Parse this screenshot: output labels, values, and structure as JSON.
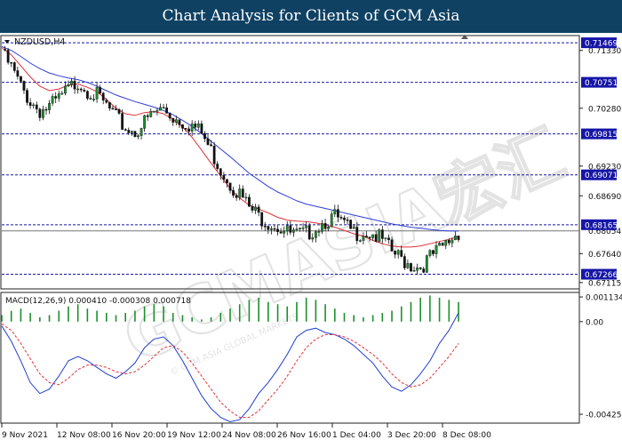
{
  "banner": {
    "title": "Chart Analysis for Clients of GCM Asia"
  },
  "watermark": {
    "text": "GCMASIA宏汇",
    "subtext": "© GCM ASIA GLOBAL MARKETS"
  },
  "colors": {
    "banner_bg": "#0f4163",
    "candle_up": "#1d8f2b",
    "candle_down": "#111111",
    "ma_fast": "#e0303a",
    "ma_slow": "#2f3fd6",
    "level_line": "#1515a8",
    "level_tag_bg": "#1515a8",
    "macd_hist": "#1d8f2b",
    "macd_line": "#1f3fd0",
    "signal_line": "#e0303a"
  },
  "chart_data": [
    {
      "type": "candlestick",
      "title": "NZDUSD,H4",
      "ylim": [
        0.67,
        0.716
      ],
      "price_scale_labels": [
        "0.71330",
        "0.70280",
        "0.69230",
        "0.68690",
        "0.67640",
        "0.67115"
      ],
      "levels": [
        {
          "label": "0.71469",
          "value": 0.71469
        },
        {
          "label": "0.70751",
          "value": 0.70751
        },
        {
          "label": "0.69815",
          "value": 0.69815
        },
        {
          "label": "0.69071",
          "value": 0.69071
        },
        {
          "label": "0.68165",
          "value": 0.68165
        },
        {
          "label": "0.67266",
          "value": 0.67266
        }
      ],
      "current_price": {
        "label": "0.68054",
        "value": 0.68054
      },
      "close_path": [
        0.7135,
        0.711,
        0.7075,
        0.7048,
        0.7032,
        0.7038,
        0.7052,
        0.707,
        0.7085,
        0.707,
        0.7058,
        0.704,
        0.7018,
        0.7,
        0.6993,
        0.701,
        0.7028,
        0.7035,
        0.702,
        0.7012,
        0.7005,
        0.699,
        0.6958,
        0.6925,
        0.69,
        0.688,
        0.6855,
        0.684,
        0.683,
        0.6822,
        0.681,
        0.6805,
        0.6808,
        0.682,
        0.6832,
        0.6838,
        0.6822,
        0.681,
        0.6812,
        0.6808,
        0.6795,
        0.6775,
        0.6762,
        0.6752,
        0.6748,
        0.6765,
        0.6778,
        0.6795,
        0.6812
      ],
      "ma_fast": [
        0.7138,
        0.7125,
        0.7105,
        0.7085,
        0.7068,
        0.706,
        0.7063,
        0.707,
        0.7072,
        0.7066,
        0.7058,
        0.7044,
        0.7028,
        0.7018,
        0.7015,
        0.702,
        0.7022,
        0.7018,
        0.7008,
        0.6994,
        0.6975,
        0.6952,
        0.6928,
        0.6905,
        0.6882,
        0.6865,
        0.6852,
        0.6845,
        0.6838,
        0.683,
        0.6825,
        0.6823,
        0.6822,
        0.682,
        0.6816,
        0.6812,
        0.6806,
        0.68,
        0.6796,
        0.6788,
        0.6782,
        0.6778,
        0.6776,
        0.6776,
        0.6778,
        0.6782,
        0.6786,
        0.679,
        0.6795
      ],
      "ma_slow": [
        0.714,
        0.7133,
        0.7122,
        0.711,
        0.71,
        0.7092,
        0.7087,
        0.7083,
        0.708,
        0.7075,
        0.7068,
        0.706,
        0.7052,
        0.7046,
        0.704,
        0.7035,
        0.703,
        0.7024,
        0.7016,
        0.7006,
        0.6995,
        0.6982,
        0.6968,
        0.6954,
        0.694,
        0.6925,
        0.691,
        0.6898,
        0.6886,
        0.6876,
        0.6868,
        0.686,
        0.6854,
        0.685,
        0.6846,
        0.6842,
        0.6838,
        0.6834,
        0.683,
        0.6826,
        0.6822,
        0.6818,
        0.6815,
        0.6812,
        0.681,
        0.6808,
        0.6806,
        0.6805,
        0.6805
      ]
    },
    {
      "type": "bar",
      "title": "MACD(12,26,9) 0.000410 -0.000308 0.000718",
      "ylim": [
        -0.00466,
        0.00134
      ],
      "scale_labels": [
        "0.001134",
        "0.00",
        "-0.004254"
      ],
      "signal_label": "0.000718",
      "macd": [
        -0.0002,
        -0.0009,
        -0.0018,
        -0.0028,
        -0.0033,
        -0.0031,
        -0.0025,
        -0.0018,
        -0.0016,
        -0.0018,
        -0.0021,
        -0.0024,
        -0.0026,
        -0.0023,
        -0.0019,
        -0.0012,
        -0.0008,
        -0.0007,
        -0.0011,
        -0.0018,
        -0.0026,
        -0.0034,
        -0.004,
        -0.0044,
        -0.0046,
        -0.0045,
        -0.004,
        -0.0033,
        -0.0028,
        -0.0022,
        -0.0015,
        -0.0007,
        -0.0004,
        -0.0003,
        -0.0005,
        -0.0006,
        -0.0008,
        -0.0011,
        -0.0015,
        -0.0019,
        -0.0025,
        -0.003,
        -0.0032,
        -0.0029,
        -0.0024,
        -0.0018,
        -0.001,
        -0.0004,
        0.0004
      ],
      "signal": [
        -0.0001,
        -0.0004,
        -0.001,
        -0.0017,
        -0.0024,
        -0.0028,
        -0.0029,
        -0.0026,
        -0.0022,
        -0.002,
        -0.002,
        -0.0021,
        -0.0023,
        -0.0024,
        -0.0023,
        -0.002,
        -0.0016,
        -0.0012,
        -0.0011,
        -0.0014,
        -0.0019,
        -0.0025,
        -0.0031,
        -0.0037,
        -0.0041,
        -0.0044,
        -0.0044,
        -0.0041,
        -0.0036,
        -0.0031,
        -0.0025,
        -0.0018,
        -0.0012,
        -0.0008,
        -0.0006,
        -0.0006,
        -0.0007,
        -0.0009,
        -0.0012,
        -0.0015,
        -0.0019,
        -0.0024,
        -0.0028,
        -0.003,
        -0.0029,
        -0.0026,
        -0.0021,
        -0.0016,
        -0.001
      ],
      "histogram": [
        0.0003,
        0.0005,
        0.0006,
        0.0004,
        0.0002,
        0.0003,
        0.0005,
        0.0007,
        0.0008,
        0.0006,
        0.0005,
        0.0004,
        0.0003,
        0.0004,
        0.0005,
        0.0007,
        0.0008,
        0.0007,
        0.0004,
        0.0003,
        0.0002,
        0.0001,
        0.0002,
        0.0004,
        0.0006,
        0.0008,
        0.001,
        0.0011,
        0.0009,
        0.0008,
        0.0007,
        0.0009,
        0.0011,
        0.001,
        0.0008,
        0.0006,
        0.0004,
        0.0003,
        0.0002,
        0.0003,
        0.0004,
        0.0005,
        0.0007,
        0.0009,
        0.0011,
        0.0012,
        0.0011,
        0.001,
        0.0009
      ]
    }
  ],
  "x_axis": {
    "labels": [
      "9 Nov 2021",
      "12 Nov 08:00",
      "16 Nov 20:00",
      "19 Nov 12:00",
      "24 Nov 08:00",
      "26 Nov 16:00",
      "1 Dec 04:00",
      "3 Dec 20:00",
      "8 Dec 08:00"
    ]
  }
}
